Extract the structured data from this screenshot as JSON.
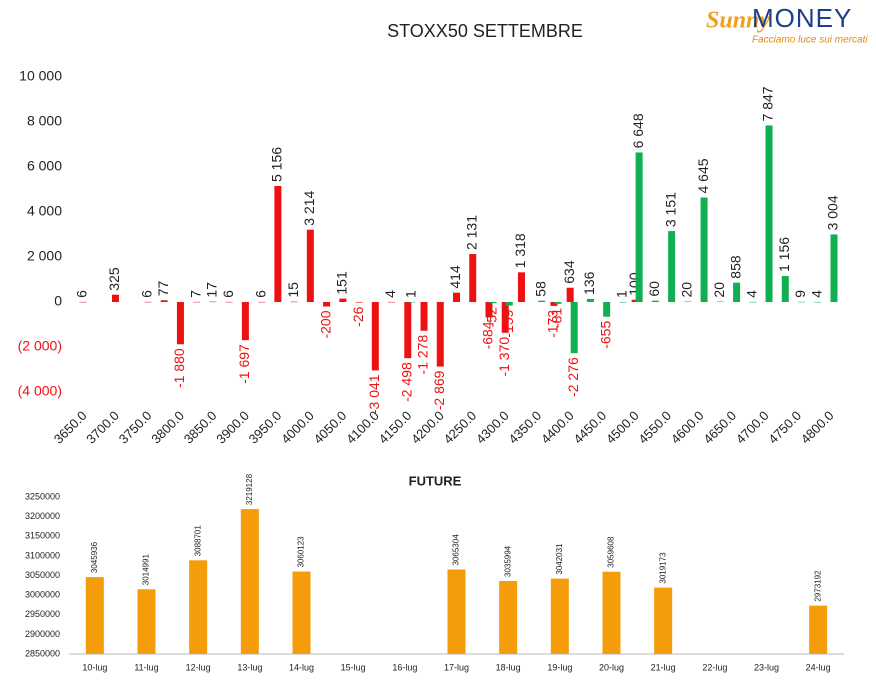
{
  "logo": {
    "brand": "Sunny",
    "name": "MONEY",
    "tagline": "Facciamo luce sui mercati"
  },
  "chart_data": [
    {
      "type": "bar",
      "title": "STOXX50 SETTEMBRE",
      "categories": [
        "3650.0",
        null,
        "3700.0",
        null,
        "3750.0",
        null,
        "3800.0",
        null,
        "3850.0",
        null,
        "3900.0",
        null,
        "3950.0",
        null,
        "4000.0",
        null,
        "4050.0",
        null,
        "4100.0",
        null,
        "4150.0",
        null,
        "4200.0",
        null,
        "4250.0",
        null,
        "4300.0",
        null,
        "4350.0",
        null,
        "4400.0",
        null,
        "4450.0",
        null,
        "4500.0",
        null,
        "4550.0",
        null,
        "4600.0",
        null,
        "4650.0",
        null,
        "4700.0",
        null,
        "4750.0",
        null,
        "4800.0"
      ],
      "series": [
        {
          "color": "#ee1111",
          "values": [
            6,
            null,
            325,
            null,
            6,
            77,
            -1880,
            7,
            17,
            6,
            -1697,
            6,
            5156,
            15,
            3214,
            -200,
            151,
            -26,
            -3041,
            4,
            -2498,
            -1278,
            -2869,
            414,
            2131,
            -684,
            -1370,
            1318,
            null,
            -173,
            634,
            null,
            null,
            null,
            100,
            null,
            null,
            null,
            null,
            null,
            null,
            null,
            null,
            null,
            null,
            null,
            null
          ],
          "value_labels": [
            "6",
            null,
            "325",
            null,
            "6",
            "77",
            "-1 880",
            "7",
            "17",
            "6",
            "-1 697",
            "6",
            "5 156",
            "15",
            "3 214",
            "-200",
            "151",
            "-26",
            "-3 041",
            "4",
            "-2 498",
            "-1 278",
            "-2 869",
            "414",
            "2 131",
            "-684",
            "-1 370",
            "1 318",
            null,
            "-173",
            "634",
            null,
            null,
            null,
            "100",
            null,
            null,
            null,
            null,
            null,
            null,
            null,
            null,
            null,
            null,
            null,
            null
          ]
        },
        {
          "color": "#10b050",
          "values": [
            null,
            null,
            null,
            null,
            null,
            null,
            null,
            null,
            null,
            null,
            null,
            null,
            null,
            null,
            null,
            null,
            null,
            null,
            null,
            null,
            1,
            null,
            null,
            null,
            null,
            -52,
            -159,
            null,
            58,
            -81,
            -2276,
            136,
            -655,
            1,
            6648,
            60,
            3151,
            20,
            4645,
            20,
            858,
            4,
            7847,
            1156,
            9,
            4,
            3004
          ],
          "value_labels": [
            null,
            null,
            null,
            null,
            null,
            null,
            null,
            null,
            null,
            null,
            null,
            null,
            null,
            null,
            null,
            null,
            null,
            null,
            null,
            null,
            "1",
            null,
            null,
            null,
            null,
            "-52",
            "-159",
            null,
            "58",
            "-81",
            "-2 276",
            "136",
            "-655",
            "1",
            "6 648",
            "60",
            "3 151",
            "20",
            "4 645",
            "20",
            "858",
            "4",
            "7 847",
            "1 156",
            "9",
            "4",
            "3 004"
          ]
        }
      ],
      "ylim": [
        -4000,
        10000
      ],
      "yticks": [
        {
          "value": -4000,
          "label": "(4 000)"
        },
        {
          "value": -2000,
          "label": "(2 000)"
        },
        0,
        {
          "value": 2000,
          "label": "2 000"
        },
        {
          "value": 4000,
          "label": "4 000"
        },
        {
          "value": 6000,
          "label": "6 000"
        },
        {
          "value": 8000,
          "label": "8 000"
        },
        {
          "value": 10000,
          "label": "10 000"
        }
      ],
      "negative_color": "#ee1111"
    },
    {
      "type": "bar",
      "title": "FUTURE",
      "categories": [
        "10-lug",
        "11-lug",
        "12-lug",
        "13-lug",
        "14-lug",
        "15-lug",
        "16-lug",
        "17-lug",
        "18-lug",
        "19-lug",
        "20-lug",
        "21-lug",
        "22-lug",
        "23-lug",
        "24-lug"
      ],
      "values": [
        3045936,
        3014991,
        3088701,
        3219128,
        3060123,
        null,
        null,
        3065304,
        3035994,
        3042031,
        3059608,
        3019173,
        null,
        null,
        2973192
      ],
      "color": "#f59c0a",
      "ylim": [
        2850000,
        3250000
      ],
      "yticks": [
        2850000,
        2900000,
        2950000,
        3000000,
        3050000,
        3100000,
        3150000,
        3200000,
        3250000
      ]
    }
  ]
}
